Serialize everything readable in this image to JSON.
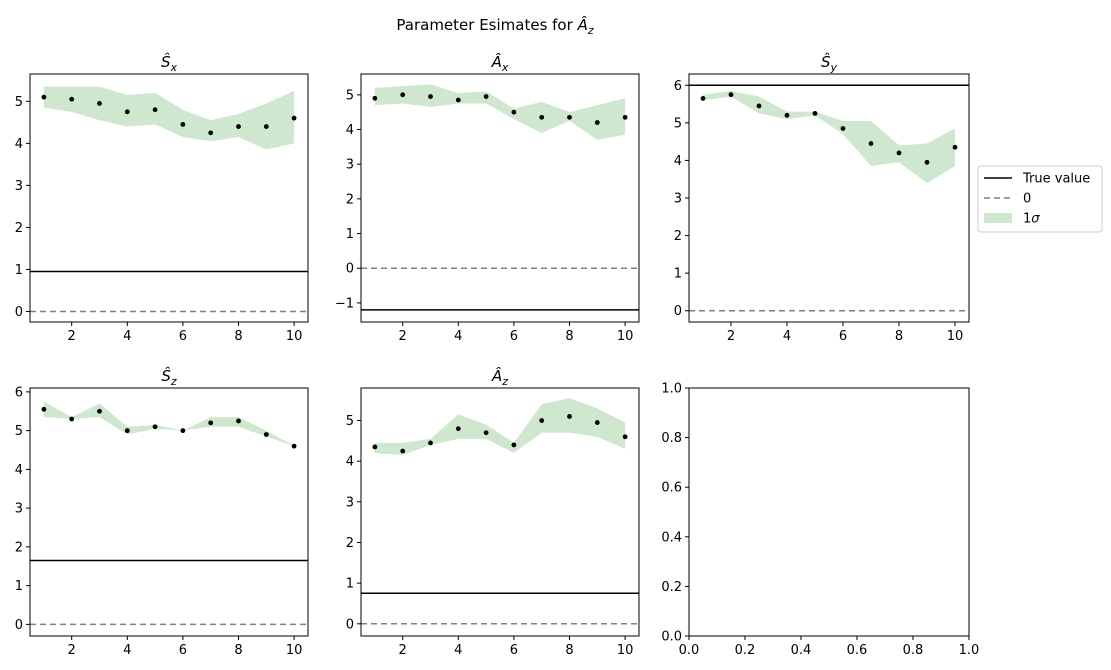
{
  "figure": {
    "suptitle_prefix": "Parameter Esimates for ",
    "suptitle_symbol": "Â",
    "suptitle_subscript": "z"
  },
  "legend": {
    "placement": "right of top row",
    "entries": [
      {
        "label_main": "True value",
        "label_sub": "",
        "kind": "line",
        "color": "#000000"
      },
      {
        "label_main": "0",
        "label_sub": "",
        "kind": "dashed",
        "color": "#808080"
      },
      {
        "label_main": "1",
        "label_sub": "σ",
        "kind": "patch",
        "color": "#cfe7cf"
      }
    ]
  },
  "colors": {
    "band": "#cfe7cf",
    "points": "#000000",
    "true_line": "#000000",
    "zero_line": "#808080"
  },
  "chart_data": [
    {
      "type": "line",
      "title_symbol": "Ŝ",
      "title_subscript": "x",
      "x": [
        1,
        2,
        3,
        4,
        5,
        6,
        7,
        8,
        9,
        10
      ],
      "estimate": [
        5.1,
        5.05,
        4.95,
        4.75,
        4.8,
        4.45,
        4.25,
        4.4,
        4.4,
        4.6
      ],
      "band_upper": [
        5.35,
        5.35,
        5.35,
        5.15,
        5.2,
        4.8,
        4.55,
        4.7,
        4.95,
        5.25
      ],
      "band_lower": [
        4.85,
        4.75,
        4.55,
        4.4,
        4.45,
        4.15,
        4.05,
        4.15,
        3.85,
        4.0
      ],
      "true_value": 0.95,
      "zero_line": 0,
      "xlim": [
        0.5,
        10.5
      ],
      "ylim": [
        -0.25,
        5.65
      ],
      "xticks": [
        2,
        4,
        6,
        8,
        10
      ],
      "yticks": [
        0,
        1,
        2,
        3,
        4,
        5
      ],
      "ytick_labels": [
        "0",
        "1",
        "2",
        "3",
        "4",
        "5"
      ]
    },
    {
      "type": "line",
      "title_symbol": "Â",
      "title_subscript": "x",
      "x": [
        1,
        2,
        3,
        4,
        5,
        6,
        7,
        8,
        9,
        10
      ],
      "estimate": [
        4.9,
        5.0,
        4.95,
        4.85,
        4.95,
        4.5,
        4.35,
        4.35,
        4.2,
        4.35
      ],
      "band_upper": [
        5.2,
        5.25,
        5.3,
        5.05,
        5.1,
        4.6,
        4.8,
        4.5,
        4.7,
        4.9
      ],
      "band_lower": [
        4.7,
        4.75,
        4.65,
        4.75,
        4.75,
        4.3,
        3.9,
        4.25,
        3.7,
        3.85
      ],
      "true_value": -1.2,
      "zero_line": 0,
      "xlim": [
        0.5,
        10.5
      ],
      "ylim": [
        -1.55,
        5.6
      ],
      "xticks": [
        2,
        4,
        6,
        8,
        10
      ],
      "yticks": [
        -1,
        0,
        1,
        2,
        3,
        4,
        5
      ],
      "ytick_labels": [
        "−1",
        "0",
        "1",
        "2",
        "3",
        "4",
        "5"
      ]
    },
    {
      "type": "line",
      "title_symbol": "Ŝ",
      "title_subscript": "y",
      "x": [
        1,
        2,
        3,
        4,
        5,
        6,
        7,
        8,
        9,
        10
      ],
      "estimate": [
        5.65,
        5.75,
        5.45,
        5.2,
        5.25,
        4.85,
        4.45,
        4.2,
        3.95,
        4.35
      ],
      "band_upper": [
        5.75,
        5.85,
        5.7,
        5.3,
        5.3,
        5.05,
        5.05,
        4.4,
        4.45,
        4.85
      ],
      "band_lower": [
        5.6,
        5.7,
        5.25,
        5.1,
        5.2,
        4.7,
        3.85,
        3.95,
        3.4,
        3.85
      ],
      "true_value": 6.0,
      "zero_line": 0,
      "xlim": [
        0.5,
        10.5
      ],
      "ylim": [
        -0.3,
        6.3
      ],
      "xticks": [
        2,
        4,
        6,
        8,
        10
      ],
      "yticks": [
        0,
        1,
        2,
        3,
        4,
        5,
        6
      ],
      "ytick_labels": [
        "0",
        "1",
        "2",
        "3",
        "4",
        "5",
        "6"
      ]
    },
    {
      "type": "line",
      "title_symbol": "Ŝ",
      "title_subscript": "z",
      "x": [
        1,
        2,
        3,
        4,
        5,
        6,
        7,
        8,
        9,
        10
      ],
      "estimate": [
        5.55,
        5.3,
        5.5,
        5.0,
        5.1,
        5.0,
        5.2,
        5.25,
        4.9,
        4.6
      ],
      "band_upper": [
        5.75,
        5.35,
        5.7,
        5.1,
        5.15,
        5.0,
        5.35,
        5.35,
        5.0,
        4.6
      ],
      "band_lower": [
        5.35,
        5.3,
        5.35,
        4.9,
        5.05,
        5.0,
        5.1,
        5.1,
        4.85,
        4.6
      ],
      "true_value": 1.65,
      "zero_line": 0,
      "xlim": [
        0.5,
        10.5
      ],
      "ylim": [
        -0.3,
        6.1
      ],
      "xticks": [
        2,
        4,
        6,
        8,
        10
      ],
      "yticks": [
        0,
        1,
        2,
        3,
        4,
        5,
        6
      ],
      "ytick_labels": [
        "0",
        "1",
        "2",
        "3",
        "4",
        "5",
        "6"
      ]
    },
    {
      "type": "line",
      "title_symbol": "Â",
      "title_subscript": "z",
      "x": [
        1,
        2,
        3,
        4,
        5,
        6,
        7,
        8,
        9,
        10
      ],
      "estimate": [
        4.35,
        4.25,
        4.45,
        4.8,
        4.7,
        4.4,
        5.0,
        5.1,
        4.95,
        4.6
      ],
      "band_upper": [
        4.45,
        4.45,
        4.55,
        5.15,
        4.9,
        4.45,
        5.4,
        5.55,
        5.3,
        4.95
      ],
      "band_lower": [
        4.2,
        4.15,
        4.4,
        4.55,
        4.55,
        4.2,
        4.7,
        4.7,
        4.6,
        4.3
      ],
      "true_value": 0.75,
      "zero_line": 0,
      "xlim": [
        0.5,
        10.5
      ],
      "ylim": [
        -0.3,
        5.8
      ],
      "xticks": [
        2,
        4,
        6,
        8,
        10
      ],
      "yticks": [
        0,
        1,
        2,
        3,
        4,
        5
      ],
      "ytick_labels": [
        "0",
        "1",
        "2",
        "3",
        "4",
        "5"
      ]
    },
    {
      "type": "line",
      "title_symbol": "",
      "title_subscript": "",
      "empty": true,
      "xlim": [
        0,
        1
      ],
      "ylim": [
        0,
        1
      ],
      "xticks": [
        0,
        0.2,
        0.4,
        0.6,
        0.8,
        1.0
      ],
      "xtick_labels": [
        "0.0",
        "0.2",
        "0.4",
        "0.6",
        "0.8",
        "1.0"
      ],
      "yticks": [
        0,
        0.2,
        0.4,
        0.6,
        0.8,
        1.0
      ],
      "ytick_labels": [
        "0.0",
        "0.2",
        "0.4",
        "0.6",
        "0.8",
        "1.0"
      ]
    }
  ]
}
